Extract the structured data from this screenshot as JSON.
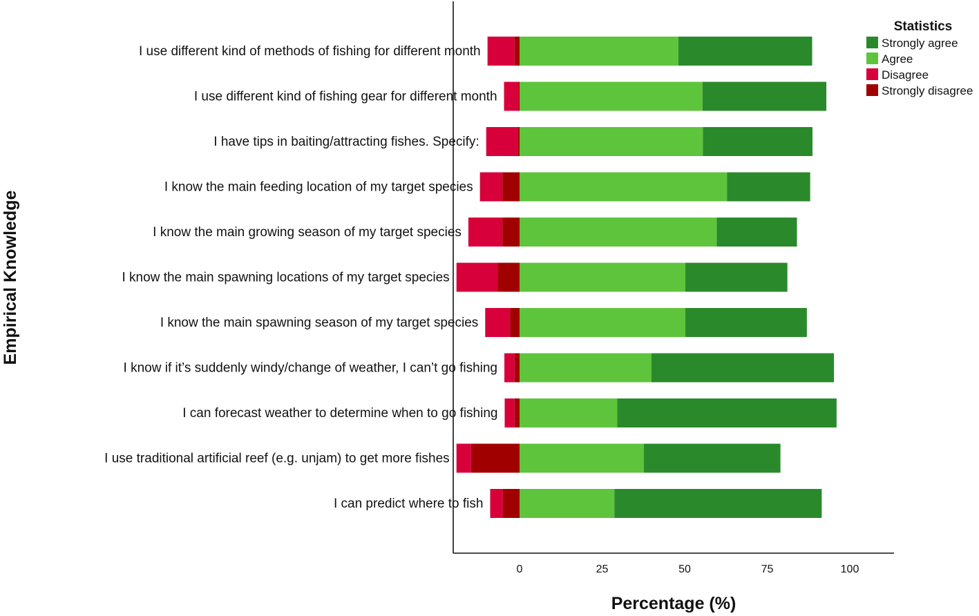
{
  "chart_data": {
    "type": "bar",
    "orientation": "horizontal",
    "stacked": "diverging",
    "xlabel": "Percentage (%)",
    "ylabel": "Empirical Knowledge",
    "xlim": [
      -20,
      114
    ],
    "xticks": [
      0,
      25,
      50,
      75,
      100
    ],
    "grid": false,
    "legend": {
      "title": "Statistics",
      "position": "top-right",
      "entries": [
        "Strongly agree",
        "Agree",
        "Disagree",
        "Strongly disagree"
      ]
    },
    "colors": {
      "Strongly agree": "#2a8a2b",
      "Agree": "#5ec43c",
      "Disagree": "#d8003a",
      "Strongly disagree": "#a00000"
    },
    "categories": [
      "I use different kind of methods of fishing for different month",
      "I use different kind of fishing gear for different month",
      "I have tips in baiting/attracting fishes. Specify:",
      "I know the main feeding location of my target species",
      "I know the main growing season of my target species",
      "I know the main spawning locations of my target species",
      "I know the main spawning season of my target species",
      "I know if it’s suddenly windy/change of weather, I can’t go fishing",
      "I can forecast weather to determine when to go fishing",
      "I use traditional artificial reef (e.g. unjam) to get more fishes",
      "I can predict where to fish"
    ],
    "series": [
      {
        "name": "Strongly agree",
        "values": [
          40.5,
          37.5,
          33.2,
          25.2,
          24.3,
          30.9,
          36.8,
          55.3,
          66.4,
          41.4,
          62.8
        ]
      },
      {
        "name": "Agree",
        "values": [
          48.1,
          55.4,
          55.5,
          62.8,
          59.7,
          50.2,
          50.2,
          39.9,
          29.6,
          37.6,
          28.7
        ]
      },
      {
        "name": "Disagree",
        "values": [
          8.2,
          4.4,
          9.5,
          6.8,
          10.3,
          12.5,
          7.5,
          3.1,
          3.0,
          4.4,
          3.8
        ]
      },
      {
        "name": "Strongly disagree",
        "values": [
          1.5,
          0.3,
          0.6,
          5.2,
          5.2,
          6.6,
          2.9,
          1.5,
          1.5,
          14.7,
          5.1
        ]
      }
    ]
  }
}
